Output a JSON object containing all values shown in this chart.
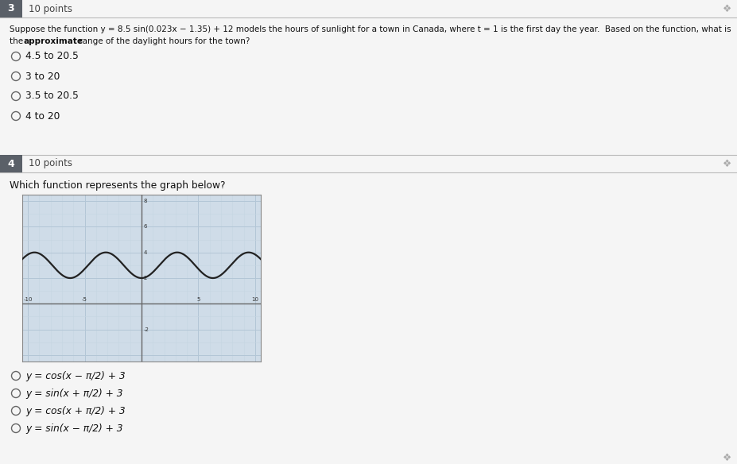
{
  "page_bg": "#f5f5f5",
  "q3_number": "3",
  "q3_points": "10 points",
  "q3_text_line1": "Suppose the function y = 8.5 sin(0.023x − 1.35) + 12 models the hours of sunlight for a town in Canada, where t = 1 is the first day the year.  Based on the function, what is",
  "q3_text_bold": "the approximate",
  "q3_text_line2": " range of the daylight hours for the town?",
  "q3_options": [
    "4.5 to 20.5",
    "3 to 20",
    "3.5 to 20.5",
    "4 to 20"
  ],
  "q4_number": "4",
  "q4_points": "10 points",
  "q4_text": "Which function represents the graph below?",
  "q4_options_math": [
    "y = cos(x − π/2) + 3",
    "y = sin(x + π/2) + 3",
    "y = cos(x + π/2) + 3",
    "y = sin(x − π/2) + 3"
  ],
  "graph_xlim": [
    -10.5,
    10.5
  ],
  "graph_ylim": [
    -4.5,
    8.5
  ],
  "graph_bg": "#cfdce8",
  "graph_grid_major_color": "#b3c6d6",
  "graph_grid_minor_color": "#c5d5e2",
  "curve_color": "#222222",
  "q_num_bg": "#5a6068",
  "q_num_color": "#ffffff",
  "header_line_color": "#cccccc",
  "radio_color": "#666666",
  "text_color": "#111111",
  "pin_color": "#aaaaaa",
  "separator_color": "#bbbbbb"
}
